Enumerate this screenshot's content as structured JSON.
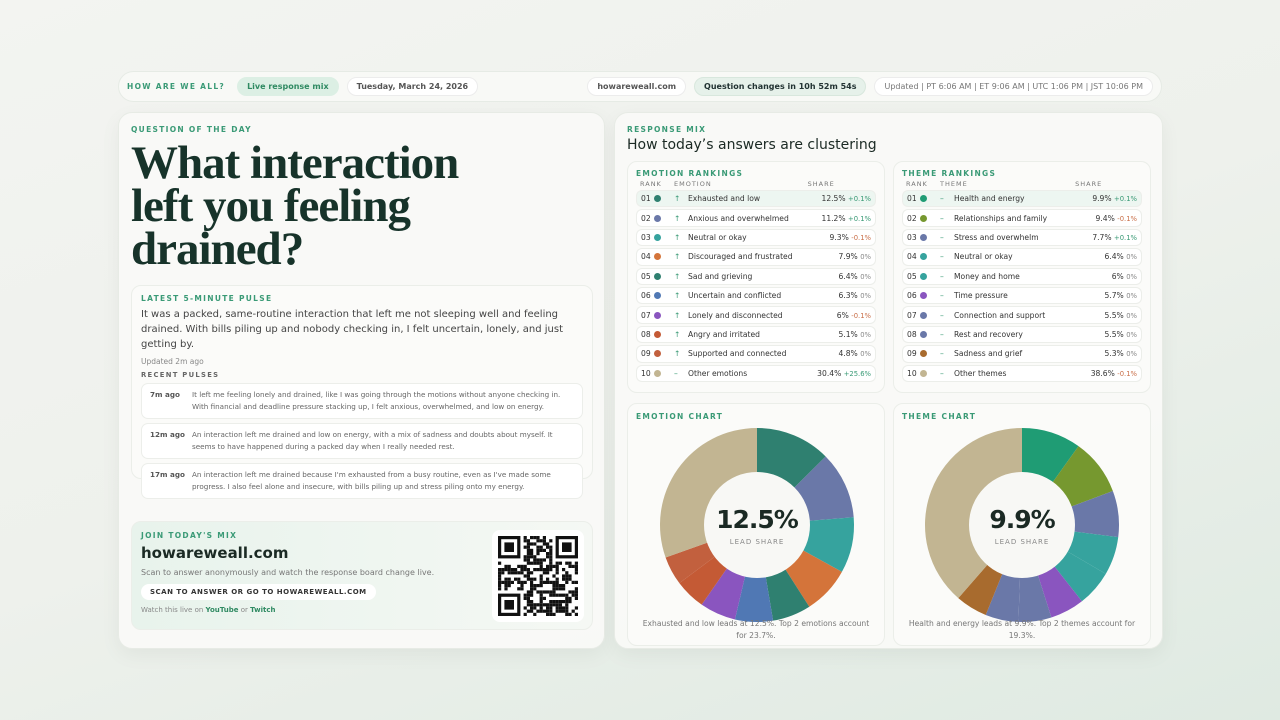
{
  "header": {
    "brand": "HOW ARE WE ALL?",
    "live": "Live response mix",
    "date": "Tuesday, March 24, 2026",
    "site": "howareweall.com",
    "countdown": "Question changes in 10h 52m 54s",
    "updated": "Updated | PT 6:06 AM | ET 9:06 AM | UTC 1:06 PM | JST 10:06 PM"
  },
  "question": {
    "label": "QUESTION OF THE DAY",
    "text": "What interaction left you feeling drained?"
  },
  "pulse": {
    "label": "LATEST 5-MINUTE PULSE",
    "text": "It was a packed, same-routine interaction that left me not sleeping well and feeling drained. With bills piling up and nobody checking in, I felt uncertain, lonely, and just getting by.",
    "updated": "Updated 2m ago",
    "recent_label": "RECENT PULSES",
    "recent": [
      {
        "time": "7m ago",
        "text": "It left me feeling lonely and drained, like I was going through the motions without anyone checking in. With financial and deadline pressure stacking up, I felt anxious, overwhelmed, and low on energy."
      },
      {
        "time": "12m ago",
        "text": "An interaction left me drained and low on energy, with a mix of sadness and doubts about myself. It seems to have happened during a packed day when I really needed rest."
      },
      {
        "time": "17m ago",
        "text": "An interaction left me drained because I'm exhausted from a busy routine, even as I've made some progress. I also feel alone and insecure, with bills piling up and stress piling onto my energy."
      }
    ]
  },
  "join": {
    "label": "JOIN TODAY'S MIX",
    "site": "howareweall.com",
    "desc": "Scan to answer anonymously and watch the response board change live.",
    "button": "SCAN TO ANSWER OR GO TO HOWAREWEALL.COM",
    "watch_prefix": "Watch this live on",
    "youtube": "YouTube",
    "or": "or",
    "twitch": "Twitch"
  },
  "mix": {
    "label": "RESPONSE MIX",
    "title": "How today’s answers are clustering"
  },
  "emotions": {
    "label": "EMOTION RANKINGS",
    "cols": [
      "RANK",
      "EMOTION",
      "SHARE"
    ],
    "rows": [
      {
        "rank": "01",
        "color": "#2f8070",
        "trend": "↑",
        "name": "Exhausted and low",
        "share": "12.5%",
        "change": "+0.1%",
        "value": 12.5
      },
      {
        "rank": "02",
        "color": "#6a78a8",
        "trend": "↑",
        "name": "Anxious and overwhelmed",
        "share": "11.2%",
        "change": "+0.1%",
        "value": 11.2
      },
      {
        "rank": "03",
        "color": "#36a39e",
        "trend": "↑",
        "name": "Neutral or okay",
        "share": "9.3%",
        "change": "-0.1%",
        "value": 9.3
      },
      {
        "rank": "04",
        "color": "#d4743a",
        "trend": "↑",
        "name": "Discouraged and frustrated",
        "share": "7.9%",
        "change": "0%",
        "value": 7.9
      },
      {
        "rank": "05",
        "color": "#2f8070",
        "trend": "↑",
        "name": "Sad and grieving",
        "share": "6.4%",
        "change": "0%",
        "value": 6.4
      },
      {
        "rank": "06",
        "color": "#5078b4",
        "trend": "↑",
        "name": "Uncertain and conflicted",
        "share": "6.3%",
        "change": "0%",
        "value": 6.3
      },
      {
        "rank": "07",
        "color": "#8a55bf",
        "trend": "↑",
        "name": "Lonely and disconnected",
        "share": "6%",
        "change": "-0.1%",
        "value": 6
      },
      {
        "rank": "08",
        "color": "#c45a35",
        "trend": "↑",
        "name": "Angry and irritated",
        "share": "5.1%",
        "change": "0%",
        "value": 5.1
      },
      {
        "rank": "09",
        "color": "#c2603e",
        "trend": "↑",
        "name": "Supported and connected",
        "share": "4.8%",
        "change": "0%",
        "value": 4.8
      },
      {
        "rank": "10",
        "color": "#c2b592",
        "trend": "–",
        "name": "Other emotions",
        "share": "30.4%",
        "change": "+25.6%",
        "value": 30.4
      }
    ]
  },
  "themes": {
    "label": "THEME RANKINGS",
    "cols": [
      "RANK",
      "THEME",
      "SHARE"
    ],
    "rows": [
      {
        "rank": "01",
        "color": "#1f9c74",
        "trend": "–",
        "name": "Health and energy",
        "share": "9.9%",
        "change": "+0.1%",
        "value": 9.9
      },
      {
        "rank": "02",
        "color": "#76982f",
        "trend": "–",
        "name": "Relationships and family",
        "share": "9.4%",
        "change": "-0.1%",
        "value": 9.4
      },
      {
        "rank": "03",
        "color": "#6a78a8",
        "trend": "–",
        "name": "Stress and overwhelm",
        "share": "7.7%",
        "change": "+0.1%",
        "value": 7.7
      },
      {
        "rank": "04",
        "color": "#36a39e",
        "trend": "–",
        "name": "Neutral or okay",
        "share": "6.4%",
        "change": "0%",
        "value": 6.4
      },
      {
        "rank": "05",
        "color": "#36a39e",
        "trend": "–",
        "name": "Money and home",
        "share": "6%",
        "change": "0%",
        "value": 6
      },
      {
        "rank": "06",
        "color": "#8a55bf",
        "trend": "–",
        "name": "Time pressure",
        "share": "5.7%",
        "change": "0%",
        "value": 5.7
      },
      {
        "rank": "07",
        "color": "#6a78a8",
        "trend": "–",
        "name": "Connection and support",
        "share": "5.5%",
        "change": "0%",
        "value": 5.5
      },
      {
        "rank": "08",
        "color": "#6a78a8",
        "trend": "–",
        "name": "Rest and recovery",
        "share": "5.5%",
        "change": "0%",
        "value": 5.5
      },
      {
        "rank": "09",
        "color": "#a86b2e",
        "trend": "–",
        "name": "Sadness and grief",
        "share": "5.3%",
        "change": "0%",
        "value": 5.3
      },
      {
        "rank": "10",
        "color": "#c2b592",
        "trend": "–",
        "name": "Other themes",
        "share": "38.6%",
        "change": "-0.1%",
        "value": 38.6
      }
    ]
  },
  "emotion_chart": {
    "label": "EMOTION CHART",
    "center": "12.5%",
    "center_label": "LEAD SHARE",
    "caption": "Exhausted and low leads at 12.5%. Top 2 emotions account for 23.7%."
  },
  "theme_chart": {
    "label": "THEME CHART",
    "center": "9.9%",
    "center_label": "LEAD SHARE",
    "caption": "Health and energy leads at 9.9%. Top 2 themes account for 19.3%."
  },
  "chart_data": [
    {
      "type": "pie",
      "title": "EMOTION CHART",
      "categories": [
        "Exhausted and low",
        "Anxious and overwhelmed",
        "Neutral or okay",
        "Discouraged and frustrated",
        "Sad and grieving",
        "Uncertain and conflicted",
        "Lonely and disconnected",
        "Angry and irritated",
        "Supported and connected",
        "Other emotions"
      ],
      "values": [
        12.5,
        11.2,
        9.3,
        7.9,
        6.4,
        6.3,
        6,
        5.1,
        4.8,
        30.4
      ]
    },
    {
      "type": "pie",
      "title": "THEME CHART",
      "categories": [
        "Health and energy",
        "Relationships and family",
        "Stress and overwhelm",
        "Neutral or okay",
        "Money and home",
        "Time pressure",
        "Connection and support",
        "Rest and recovery",
        "Sadness and grief",
        "Other themes"
      ],
      "values": [
        9.9,
        9.4,
        7.7,
        6.4,
        6,
        5.7,
        5.5,
        5.5,
        5.3,
        38.6
      ]
    }
  ]
}
